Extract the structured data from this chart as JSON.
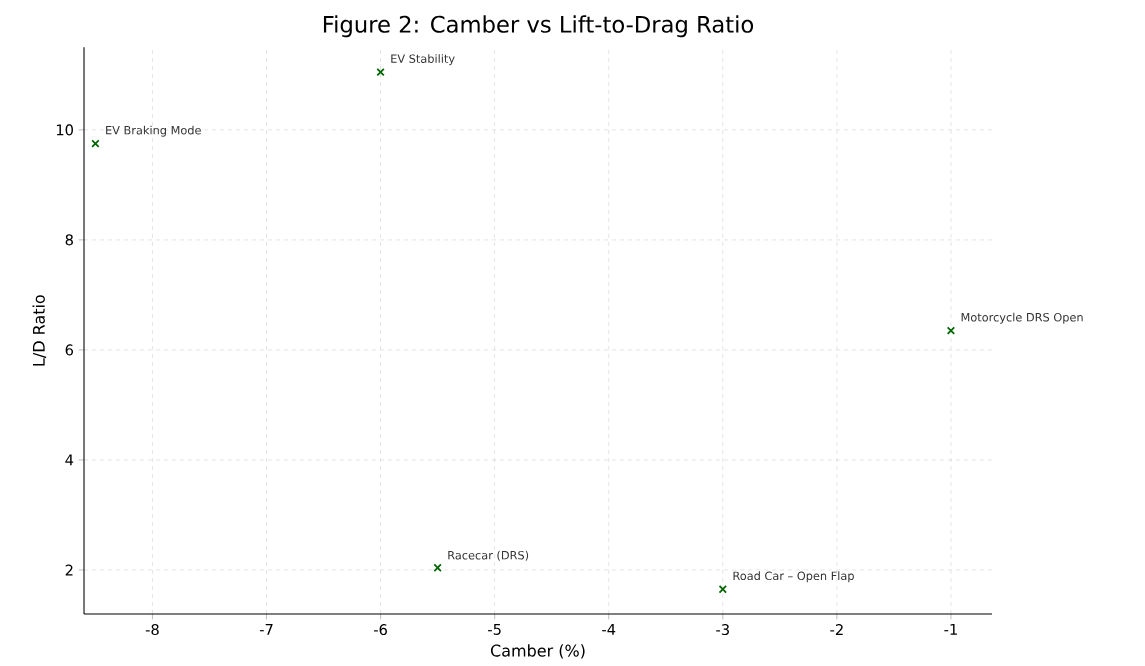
{
  "chart_data": {
    "type": "scatter",
    "title": "Figure 2: Camber vs Lift-to-Drag Ratio",
    "xlabel": "Camber (%)",
    "ylabel": "L/D Ratio",
    "x": [
      -8.5,
      -6,
      -5.5,
      -3,
      -1
    ],
    "series": [
      {
        "color": "#006400",
        "values": [
          9.75,
          11.05,
          2.04,
          1.65,
          6.35
        ]
      }
    ],
    "annotations": [
      {
        "text": "EV Braking Mode",
        "x": -8.5,
        "y": 9.75
      },
      {
        "text": "EV Stability",
        "x": -6,
        "y": 11.05
      },
      {
        "text": "Racecar (DRS)",
        "x": -5.5,
        "y": 2.04
      },
      {
        "text": "Road Car – Open Flap",
        "x": -3,
        "y": 1.65
      },
      {
        "text": "Motorcycle DRS Open",
        "x": -1,
        "y": 6.35
      }
    ],
    "xlim": [
      -8.6,
      -0.64
    ],
    "ylim": [
      1.2,
      11.5
    ],
    "xticks": [
      -8,
      -7,
      -6,
      -5,
      -4,
      -3,
      -2,
      -1
    ],
    "yticks": [
      2,
      4,
      6,
      8,
      10
    ],
    "grid": true,
    "marker": "cross"
  }
}
